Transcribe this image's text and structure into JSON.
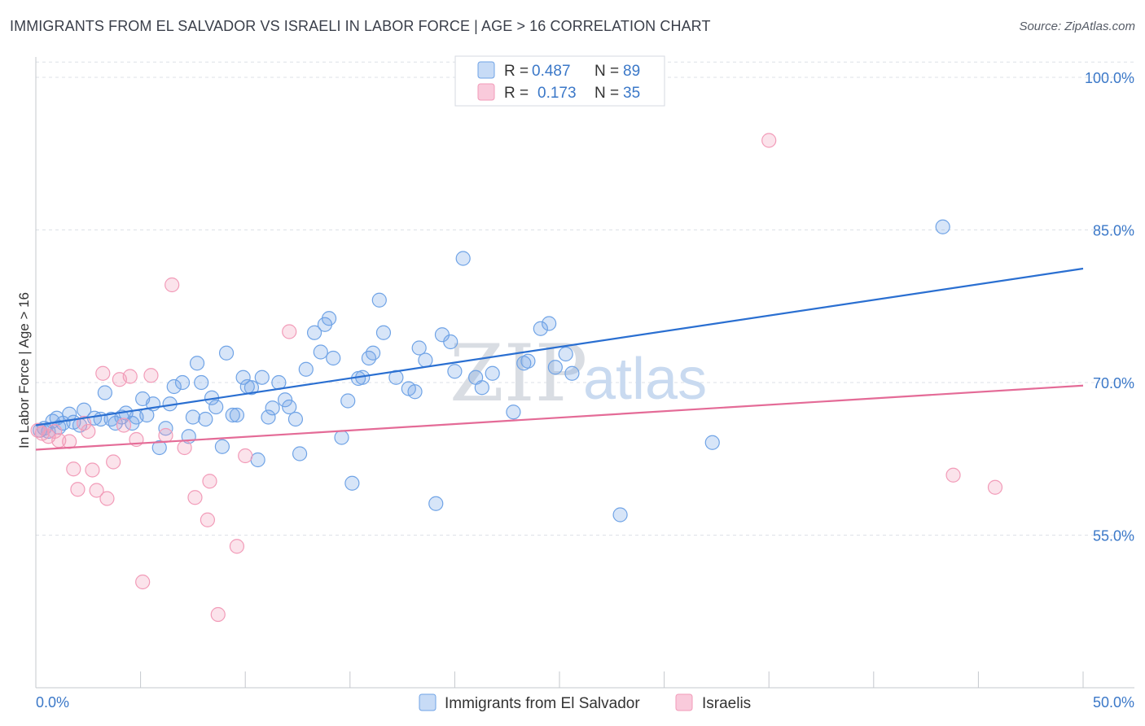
{
  "title": "IMMIGRANTS FROM EL SALVADOR VS ISRAELI IN LABOR FORCE | AGE > 16 CORRELATION CHART",
  "source": "Source: ZipAtlas.com",
  "watermark": {
    "zip": "ZIP",
    "atlas": "atlas"
  },
  "colors": {
    "blue": "#6fa3e6",
    "blue_line": "#2a6fd1",
    "pink": "#f29bb8",
    "pink_line": "#e46b97",
    "tick": "#3b78c8",
    "grid": "#dde1e7"
  },
  "legend": {
    "r_label": "R =",
    "n_label": "N =",
    "series": [
      {
        "r": "0.487",
        "n": "89"
      },
      {
        "r": "0.173",
        "n": "35"
      }
    ]
  },
  "bottom_legend": [
    "Immigrants from El Salvador",
    "Israelis"
  ],
  "chart_data": {
    "type": "scatter",
    "title": "IMMIGRANTS FROM EL SALVADOR VS ISRAELI IN LABOR FORCE | AGE > 16 CORRELATION CHART",
    "xlabel": "",
    "ylabel": "In Labor Force | Age > 16",
    "xlim": [
      0,
      50
    ],
    "ylim": [
      40,
      102
    ],
    "x_tick_labels": [
      "0.0%",
      "50.0%"
    ],
    "y_ticks": [
      55,
      70,
      85,
      100
    ],
    "y_tick_labels": [
      "55.0%",
      "70.0%",
      "85.0%",
      "100.0%"
    ],
    "series": [
      {
        "name": "Immigrants from El Salvador",
        "color": "#6fa3e6",
        "trend": {
          "x": [
            0,
            50
          ],
          "y": [
            65.8,
            81.2
          ]
        },
        "points": [
          [
            0.2,
            65.3
          ],
          [
            0.4,
            65.5
          ],
          [
            0.6,
            65.2
          ],
          [
            0.8,
            66.2
          ],
          [
            1.0,
            66.5
          ],
          [
            1.1,
            65.6
          ],
          [
            1.3,
            66.0
          ],
          [
            1.6,
            66.9
          ],
          [
            1.8,
            66.1
          ],
          [
            2.1,
            65.8
          ],
          [
            2.3,
            67.3
          ],
          [
            2.8,
            66.5
          ],
          [
            3.1,
            66.4
          ],
          [
            3.3,
            69.0
          ],
          [
            3.6,
            66.4
          ],
          [
            3.8,
            66.0
          ],
          [
            4.1,
            66.6
          ],
          [
            4.3,
            67.0
          ],
          [
            4.6,
            66.0
          ],
          [
            4.8,
            66.6
          ],
          [
            5.1,
            68.4
          ],
          [
            5.3,
            66.8
          ],
          [
            5.6,
            67.9
          ],
          [
            5.9,
            63.6
          ],
          [
            6.2,
            65.5
          ],
          [
            6.4,
            67.9
          ],
          [
            6.6,
            69.6
          ],
          [
            7.0,
            70.0
          ],
          [
            7.3,
            64.7
          ],
          [
            7.5,
            66.6
          ],
          [
            7.7,
            71.9
          ],
          [
            7.9,
            70.0
          ],
          [
            8.1,
            66.4
          ],
          [
            8.4,
            68.5
          ],
          [
            8.6,
            67.6
          ],
          [
            8.9,
            63.7
          ],
          [
            9.1,
            72.9
          ],
          [
            9.4,
            66.8
          ],
          [
            9.6,
            66.8
          ],
          [
            9.9,
            70.5
          ],
          [
            10.1,
            69.6
          ],
          [
            10.3,
            69.5
          ],
          [
            10.6,
            62.4
          ],
          [
            10.8,
            70.5
          ],
          [
            11.1,
            66.6
          ],
          [
            11.3,
            67.5
          ],
          [
            11.6,
            70.0
          ],
          [
            11.9,
            68.3
          ],
          [
            12.1,
            67.6
          ],
          [
            12.4,
            66.4
          ],
          [
            12.6,
            63.0
          ],
          [
            12.9,
            71.3
          ],
          [
            13.3,
            74.9
          ],
          [
            13.6,
            73.0
          ],
          [
            13.8,
            75.7
          ],
          [
            14.0,
            76.3
          ],
          [
            14.2,
            72.4
          ],
          [
            14.6,
            64.6
          ],
          [
            14.9,
            68.2
          ],
          [
            15.1,
            60.1
          ],
          [
            15.4,
            70.4
          ],
          [
            15.6,
            70.5
          ],
          [
            15.9,
            72.4
          ],
          [
            16.1,
            72.9
          ],
          [
            16.4,
            78.1
          ],
          [
            16.6,
            74.9
          ],
          [
            17.2,
            70.5
          ],
          [
            17.8,
            69.4
          ],
          [
            18.1,
            69.1
          ],
          [
            18.3,
            73.4
          ],
          [
            18.6,
            72.2
          ],
          [
            19.1,
            58.1
          ],
          [
            19.4,
            74.7
          ],
          [
            19.8,
            74.0
          ],
          [
            20.0,
            71.1
          ],
          [
            20.4,
            82.2
          ],
          [
            21.0,
            70.5
          ],
          [
            21.3,
            69.5
          ],
          [
            21.8,
            70.9
          ],
          [
            22.8,
            67.1
          ],
          [
            23.3,
            71.9
          ],
          [
            23.5,
            72.1
          ],
          [
            24.1,
            75.3
          ],
          [
            24.5,
            75.8
          ],
          [
            24.8,
            71.5
          ],
          [
            25.3,
            72.8
          ],
          [
            25.6,
            70.9
          ],
          [
            27.9,
            57.0
          ],
          [
            32.3,
            64.1
          ],
          [
            43.3,
            85.3
          ]
        ]
      },
      {
        "name": "Israelis",
        "color": "#f29bb8",
        "trend": {
          "x": [
            0,
            50
          ],
          "y": [
            63.4,
            69.7
          ]
        },
        "points": [
          [
            0.1,
            65.3
          ],
          [
            0.3,
            65.0
          ],
          [
            0.6,
            64.7
          ],
          [
            0.9,
            65.2
          ],
          [
            1.1,
            64.3
          ],
          [
            1.6,
            64.2
          ],
          [
            1.8,
            61.5
          ],
          [
            2.0,
            59.5
          ],
          [
            2.3,
            66.0
          ],
          [
            2.5,
            65.2
          ],
          [
            2.7,
            61.4
          ],
          [
            2.9,
            59.4
          ],
          [
            3.2,
            70.9
          ],
          [
            3.4,
            58.6
          ],
          [
            3.7,
            62.2
          ],
          [
            4.0,
            70.3
          ],
          [
            4.2,
            65.8
          ],
          [
            4.5,
            70.6
          ],
          [
            4.8,
            64.4
          ],
          [
            5.1,
            50.4
          ],
          [
            5.5,
            70.7
          ],
          [
            6.2,
            64.8
          ],
          [
            6.5,
            79.6
          ],
          [
            7.1,
            63.6
          ],
          [
            7.6,
            58.7
          ],
          [
            8.2,
            56.5
          ],
          [
            8.3,
            60.3
          ],
          [
            8.7,
            47.2
          ],
          [
            9.6,
            53.9
          ],
          [
            10.0,
            62.8
          ],
          [
            12.1,
            75.0
          ],
          [
            35.0,
            93.8
          ],
          [
            43.8,
            60.9
          ],
          [
            45.8,
            59.7
          ]
        ]
      }
    ]
  }
}
